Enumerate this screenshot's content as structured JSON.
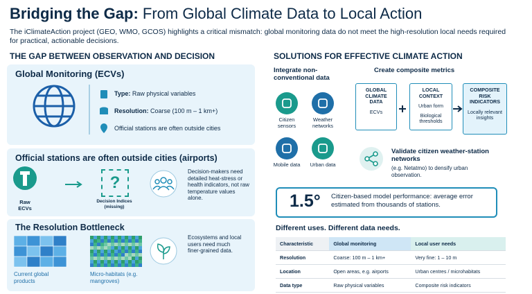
{
  "header": {
    "title_bold": "Bridging the Gap:",
    "title_rest": "From Global Climate Data to Local Action",
    "intro": "The iClimateAction project (GEO, WMO, GCOS) highlights a critical mismatch: global monitoring data do not meet the high-resolution local needs required for practical, actionable decisions."
  },
  "left": {
    "heading": "THE GAP BETWEEN OBSERVATION AND DECISION",
    "monitoring": {
      "title": "Global Monitoring (ECVs)",
      "items": [
        {
          "label": "Type:",
          "text": "Raw physical variables"
        },
        {
          "label": "Resolution:",
          "text": "Coarse (100 m – 1 km+)"
        },
        {
          "text": "Official stations are often outside cities"
        }
      ]
    },
    "stations": {
      "title": "Official stations are often outside cities (airports)",
      "raw": "Raw ECVs",
      "symbol": "?",
      "indices": "Decision Indices (missing)",
      "text": "Decision-makers need detailed heat-stress or health indicators, not raw temperature values alone."
    },
    "resolution": {
      "title": "The Resolution Bottleneck",
      "current": "Current global products",
      "micro": "Micro-habitats (e.g. mangroves)",
      "text": "Ecosystems and local users need much finer-grained data."
    }
  },
  "right": {
    "heading": "SOLUTIONS FOR EFFECTIVE CLIMATE ACTION",
    "integrate": {
      "title": "Integrate non-conventional data",
      "items": [
        "Citizen sensors",
        "Weather networks",
        "Mobile data",
        "Urban data"
      ]
    },
    "composite": {
      "title": "Create composite metrics",
      "boxes": [
        {
          "title": "GLOBAL CLIMATE DATA",
          "items": [
            "ECVs"
          ]
        },
        {
          "title": "LOCAL CONTEXT",
          "items": [
            "Urban form",
            "Biological thresholds"
          ]
        },
        {
          "title": "COMPOSITE RISK INDICATORS",
          "items": [
            "Locally relevant insights"
          ]
        }
      ]
    },
    "validate": {
      "title": "Validate citizen weather-station networks",
      "text": "(e.g. Netatmo) to densify urban observation."
    },
    "stat": {
      "value": "1.5°",
      "text": "Citizen-based model performance: average error estimated from thousands of stations."
    },
    "table": {
      "title": "Different uses. Different data needs.",
      "header": [
        "Characteristic",
        "Global monitoring",
        "Local user needs"
      ],
      "rows": [
        [
          "Resolution",
          "Coarse: 100 m – 1 km+",
          "Very fine: 1 – 10 m"
        ],
        [
          "Location",
          "Open areas, e.g. airports",
          "Urban centres / microhabitats"
        ],
        [
          "Data type",
          "Raw physical variables",
          "Composite risk indicators"
        ]
      ]
    }
  }
}
